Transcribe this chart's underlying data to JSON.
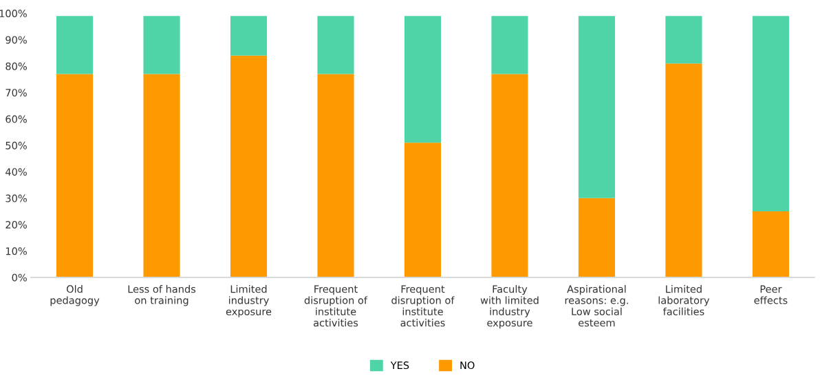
{
  "chart_data": {
    "type": "bar",
    "stacked": true,
    "categories": [
      "Old\npedagogy",
      "Less of hands\non training",
      "Limited\nindustry\nexposure",
      "Frequent\ndisruption of\ninstitute\nactivities",
      "Frequent\ndisruption of\ninstitute\nactivities",
      "Faculty\nwith limited\nindustry\nexposure",
      "Aspirational\nreasons: e.g.\nLow social\nesteem",
      "Limited\nlaboratory\nfacilities",
      "Peer\neffects"
    ],
    "series": [
      {
        "name": "NO",
        "color": "#ff9900",
        "values": [
          77,
          77,
          84,
          77,
          51,
          77,
          30,
          81,
          25
        ]
      },
      {
        "name": "YES",
        "color": "#4fd4a8",
        "values": [
          22,
          22,
          15,
          22,
          48,
          22,
          69,
          18,
          74
        ]
      }
    ],
    "ylim": [
      0,
      100
    ],
    "yticks": [
      {
        "value": 0,
        "label": "0%"
      },
      {
        "value": 10,
        "label": "10%"
      },
      {
        "value": 20,
        "label": "20%"
      },
      {
        "value": 30,
        "label": "30%"
      },
      {
        "value": 40,
        "label": "40%"
      },
      {
        "value": 50,
        "label": "50%"
      },
      {
        "value": 60,
        "label": "60%"
      },
      {
        "value": 70,
        "label": "70%"
      },
      {
        "value": 80,
        "label": "80%"
      },
      {
        "value": 90,
        "label": "90%"
      },
      {
        "value": 100,
        "label": "100%"
      }
    ],
    "legend": "bottom"
  }
}
